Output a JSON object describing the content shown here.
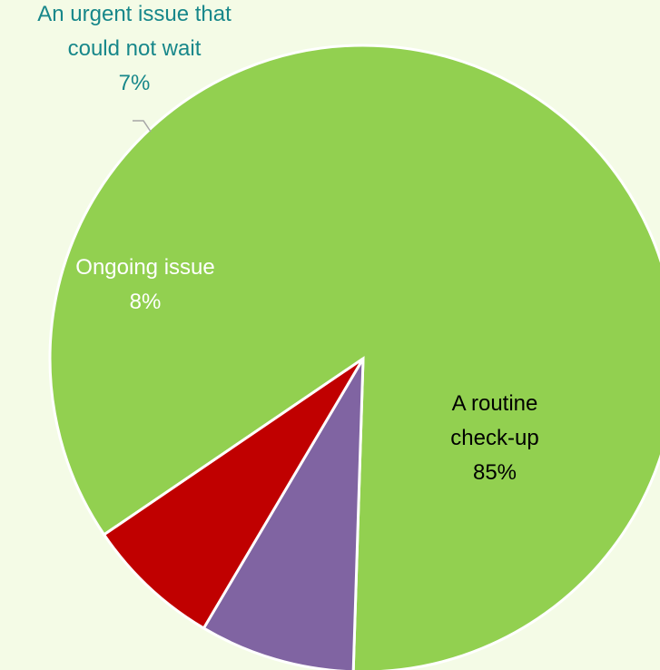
{
  "chart_data": {
    "type": "pie",
    "slices": [
      {
        "label_lines": [
          "A routine",
          "check-up"
        ],
        "value": 85,
        "percent_label": "85%",
        "color": "#92d050",
        "label_color": "#000000"
      },
      {
        "label_lines": [
          "Ongoing issue"
        ],
        "value": 8,
        "percent_label": "8%",
        "color": "#8064a2",
        "label_color": "#ffffff"
      },
      {
        "label_lines": [
          "An urgent issue that",
          "could not wait"
        ],
        "value": 7,
        "percent_label": "7%",
        "color": "#c00000",
        "label_color": "#17878a"
      }
    ],
    "legend": "none"
  }
}
